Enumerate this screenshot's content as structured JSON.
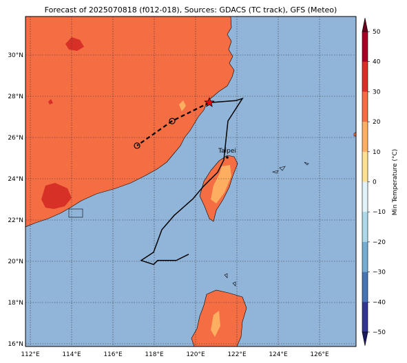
{
  "title": "Forecast of 2025070818 (f012-018), Sources: GDACS (TC track), GFS (Meteo)",
  "map": {
    "lon_ticks": [
      "112°E",
      "114°E",
      "116°E",
      "118°E",
      "120°E",
      "122°E",
      "124°E",
      "126°E"
    ],
    "lat_ticks": [
      "30°N",
      "28°N",
      "26°N",
      "24°N",
      "22°N",
      "20°N",
      "18°N",
      "16°N"
    ],
    "city_label": "Taipei",
    "colors": {
      "ocean": "#91b4d9",
      "land_20_30": "#f46d43",
      "land_30_40": "#d73027",
      "land_10_20": "#fdae61"
    }
  },
  "colorbar": {
    "label": "Min Temperature (°C)",
    "ticks": [
      "50",
      "40",
      "30",
      "20",
      "10",
      "0",
      "−10",
      "−20",
      "−30",
      "−40",
      "−50"
    ],
    "colors": [
      "#a50026",
      "#d73027",
      "#f46d43",
      "#fdae61",
      "#fee090",
      "#e0f3f8",
      "#abd9e9",
      "#74add1",
      "#4575b4",
      "#313695"
    ]
  },
  "chart_data": {
    "type": "map",
    "title": "Forecast of 2025070818 (f012-018), Sources: GDACS (TC track), GFS (Meteo)",
    "lon_range": [
      111.8,
      127.8
    ],
    "lat_range": [
      15.9,
      32
    ],
    "colorbar_range": [
      -50,
      50
    ],
    "colorbar_step": 10,
    "tc_track_past": [
      [
        119.7,
        20.4
      ],
      [
        119.1,
        20.1
      ],
      [
        118.6,
        20.1
      ],
      [
        118.2,
        20.1
      ],
      [
        118.0,
        19.9
      ],
      [
        117.4,
        20.1
      ],
      [
        118.0,
        20.5
      ],
      [
        118.4,
        21.6
      ],
      [
        119.0,
        22.3
      ],
      [
        119.9,
        23.1
      ],
      [
        120.4,
        23.7
      ],
      [
        121.1,
        24.4
      ],
      [
        121.4,
        25.0
      ],
      [
        121.6,
        26.9
      ],
      [
        122.3,
        28.0
      ],
      [
        122.0,
        27.9
      ],
      [
        120.7,
        27.8
      ]
    ],
    "tc_track_forecast": [
      [
        120.7,
        27.8
      ],
      [
        118.9,
        26.9
      ],
      [
        117.2,
        25.7
      ]
    ],
    "tc_current": [
      120.7,
      27.8
    ],
    "forecast_points": [
      [
        118.9,
        26.9
      ],
      [
        117.2,
        25.7
      ]
    ],
    "cities": [
      {
        "name": "Taipei",
        "lon": 121.5,
        "lat": 25.05
      }
    ]
  }
}
